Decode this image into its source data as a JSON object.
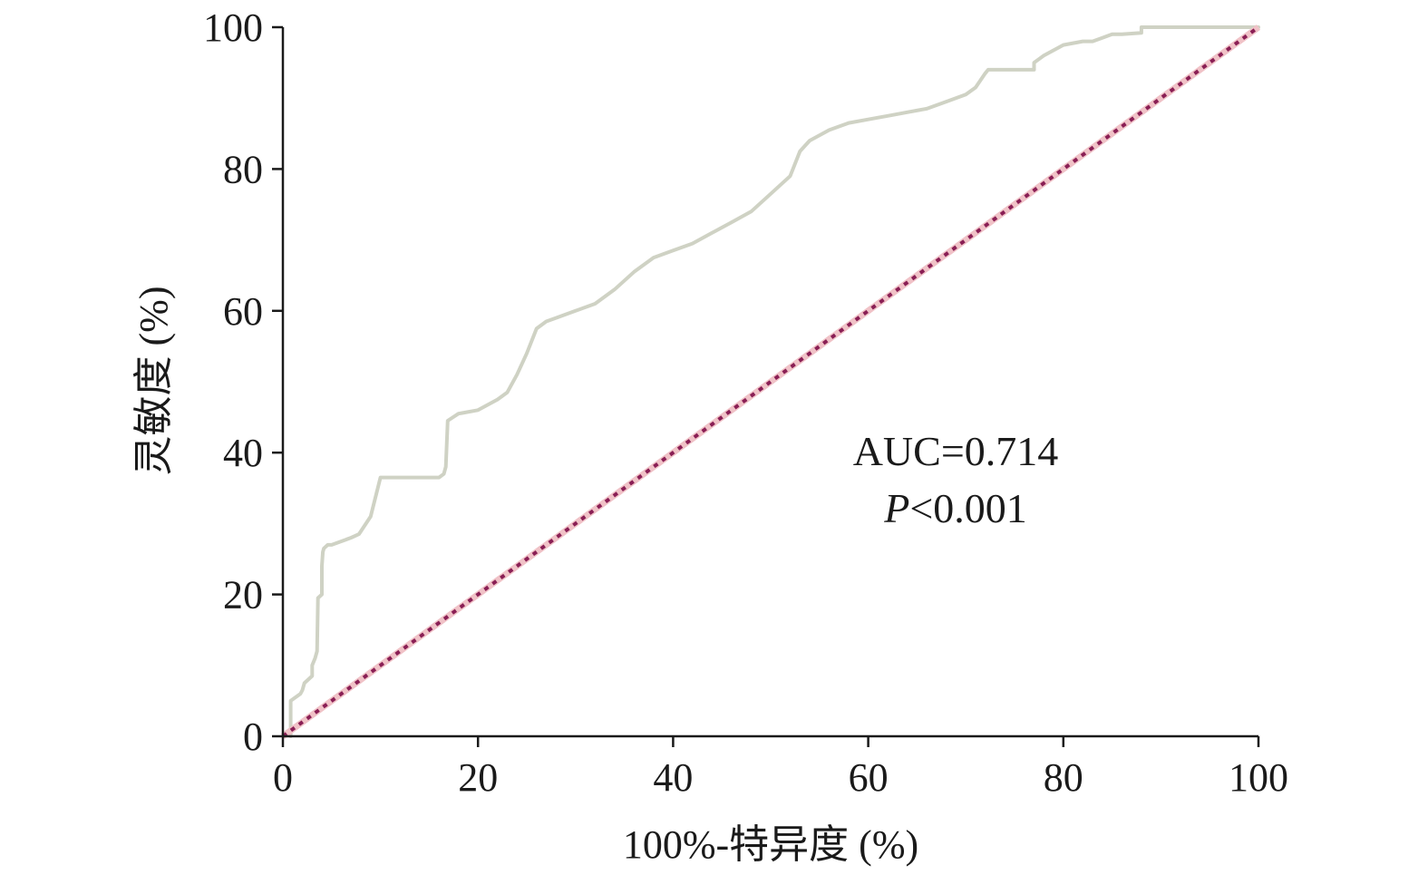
{
  "chart_data": {
    "type": "line",
    "xlabel": "100%-特异度 (%)",
    "ylabel": "灵敏度 (%)",
    "xlim": [
      0,
      100
    ],
    "ylim": [
      0,
      100
    ],
    "x_ticks": [
      "0",
      "20",
      "40",
      "60",
      "80",
      "100"
    ],
    "y_ticks": [
      "0",
      "20",
      "40",
      "60",
      "80",
      "100"
    ],
    "grid": false,
    "annotations": {
      "auc": "AUC=0.714",
      "p_italic": "P",
      "p_rest": "<0.001"
    },
    "series": [
      {
        "style": "roc-curve",
        "color": "#cfd2c4",
        "x": [
          0.8,
          0.8,
          1.8,
          2.0,
          2.2,
          3.0,
          3.0,
          3.3,
          3.5,
          3.6,
          4.0,
          4.0,
          4.1,
          4.2,
          4.6,
          5.0,
          7.0,
          7.8,
          9.0,
          10.0,
          12.0,
          16.0,
          16.5,
          16.7,
          16.9,
          18.0,
          20.0,
          22.0,
          23.0,
          24.0,
          25.0,
          26.0,
          27.0,
          28.0,
          30.0,
          32.0,
          34.0,
          36.0,
          38.0,
          40.0,
          42.0,
          44.0,
          46.0,
          48.0,
          50.0,
          52.0,
          53.0,
          54.0,
          56.0,
          58.0,
          60.0,
          62.0,
          64.0,
          66.0,
          68.0,
          70.0,
          71.0,
          72.0,
          72.3,
          74.0,
          77.0,
          77.0,
          78.0,
          80.0,
          82.0,
          83.0,
          84.0,
          85.0,
          86.0,
          88.0,
          88.0,
          90.0,
          92.0,
          94.0,
          96.0,
          98.0,
          100.0
        ],
        "y": [
          0.0,
          5.0,
          6.0,
          6.5,
          7.5,
          8.5,
          10.0,
          11.0,
          12.0,
          19.5,
          20.0,
          24.0,
          26.0,
          26.5,
          27.0,
          27.0,
          28.0,
          28.5,
          31.0,
          36.5,
          36.5,
          36.5,
          37.0,
          38.0,
          44.5,
          45.5,
          46.0,
          47.5,
          48.5,
          51.0,
          54.0,
          57.5,
          58.5,
          59.0,
          60.0,
          61.0,
          63.0,
          65.5,
          67.5,
          68.5,
          69.5,
          71.0,
          72.5,
          74.0,
          76.5,
          79.0,
          82.5,
          84.0,
          85.5,
          86.5,
          87.0,
          87.5,
          88.0,
          88.5,
          89.5,
          90.5,
          91.5,
          93.5,
          94.0,
          94.0,
          94.0,
          95.0,
          96.0,
          97.5,
          98.0,
          98.0,
          98.5,
          99.0,
          99.0,
          99.2,
          100.0,
          100.0,
          100.0,
          100.0,
          100.0,
          100.0,
          100.0
        ]
      },
      {
        "style": "reference-diagonal",
        "color": "#f0c2c7",
        "dot_color": "#8a1f55",
        "x": [
          0,
          100
        ],
        "y": [
          0,
          100
        ]
      }
    ]
  }
}
